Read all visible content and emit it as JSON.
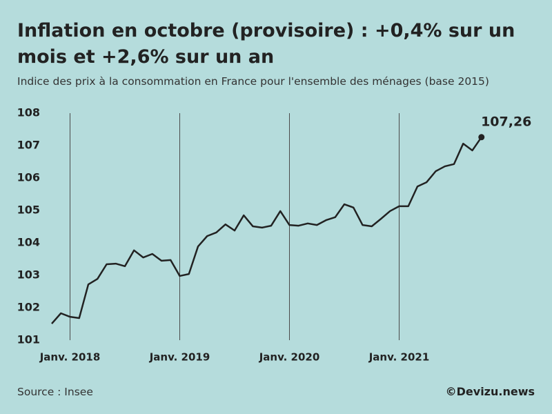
{
  "chart_data": {
    "type": "line",
    "title": "Inflation en octobre (provisoire) : +0,4% sur un mois et +2,6% sur un an",
    "subtitle": "Indice des prix à la consommation en France pour l'ensemble des ménages (base 2015)",
    "source": "Source : Insee",
    "credit": "©Devizu.news",
    "x": [
      "2017-11",
      "2017-12",
      "2018-01",
      "2018-02",
      "2018-03",
      "2018-04",
      "2018-05",
      "2018-06",
      "2018-07",
      "2018-08",
      "2018-09",
      "2018-10",
      "2018-11",
      "2018-12",
      "2019-01",
      "2019-02",
      "2019-03",
      "2019-04",
      "2019-05",
      "2019-06",
      "2019-07",
      "2019-08",
      "2019-09",
      "2019-10",
      "2019-11",
      "2019-12",
      "2020-01",
      "2020-02",
      "2020-03",
      "2020-04",
      "2020-05",
      "2020-06",
      "2020-07",
      "2020-08",
      "2020-09",
      "2020-10",
      "2020-11",
      "2020-12",
      "2021-01",
      "2021-02",
      "2021-03",
      "2021-04",
      "2021-05",
      "2021-06",
      "2021-07",
      "2021-08",
      "2021-09",
      "2021-10"
    ],
    "series": [
      {
        "color": "#222222",
        "values": [
          101.51,
          101.83,
          101.72,
          101.68,
          102.72,
          102.89,
          103.34,
          103.36,
          103.28,
          103.77,
          103.55,
          103.66,
          103.45,
          103.47,
          102.98,
          103.04,
          103.89,
          104.21,
          104.32,
          104.57,
          104.38,
          104.85,
          104.51,
          104.47,
          104.53,
          104.98,
          104.55,
          104.53,
          104.6,
          104.55,
          104.7,
          104.79,
          105.19,
          105.09,
          104.55,
          104.51,
          104.74,
          104.98,
          105.13,
          105.13,
          105.74,
          105.87,
          106.21,
          106.36,
          106.43,
          107.06,
          106.85,
          107.26
        ],
        "value_labels": [
          null,
          null,
          null,
          null,
          null,
          null,
          null,
          null,
          null,
          null,
          null,
          null,
          null,
          null,
          null,
          null,
          null,
          null,
          null,
          null,
          null,
          null,
          null,
          null,
          null,
          null,
          null,
          null,
          null,
          null,
          null,
          null,
          null,
          null,
          null,
          null,
          null,
          null,
          null,
          null,
          null,
          null,
          null,
          null,
          null,
          null,
          null,
          "107,26"
        ]
      }
    ],
    "xticks": [
      {
        "value": "2018-01",
        "label": "Janv. 2018"
      },
      {
        "value": "2019-01",
        "label": "Janv. 2019"
      },
      {
        "value": "2020-01",
        "label": "Janv. 2020"
      },
      {
        "value": "2021-01",
        "label": "Janv. 2021"
      }
    ],
    "ylim": [
      101,
      108
    ],
    "yticks": [
      101,
      102,
      103,
      104,
      105,
      106,
      107,
      108
    ],
    "grid": true
  }
}
